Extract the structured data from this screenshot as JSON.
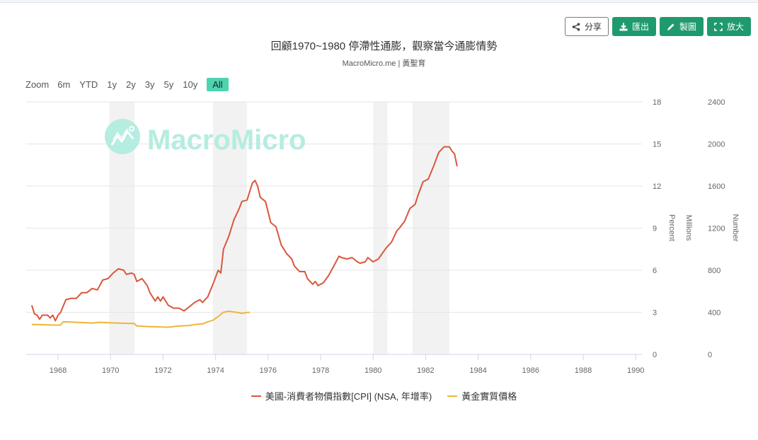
{
  "toolbar": {
    "share_label": "分享",
    "export_label": "匯出",
    "draw_label": "製圖",
    "fullscreen_label": "放大",
    "icons": {
      "share": "share-icon",
      "export": "download-icon",
      "draw": "pencil-icon",
      "fullscreen": "expand-icon"
    }
  },
  "header": {
    "title": "回顧1970~1980 停滯性通膨，觀察當今通膨情勢",
    "subtitle": "MacroMicro.me | 黃聖育"
  },
  "range_selector": {
    "label": "Zoom",
    "buttons": [
      "6m",
      "YTD",
      "1y",
      "2y",
      "3y",
      "5y",
      "10y",
      "All"
    ],
    "active": "All"
  },
  "watermark": {
    "text": "MacroMicro",
    "color": "#b5ede0"
  },
  "colors": {
    "cpi": "#d9573b",
    "gold": "#efb43a",
    "recession": "#f2f2f2",
    "grid": "#e6e6e6",
    "button": "#1f9a6e",
    "active_range": "#4cd4b0"
  },
  "chart_data": {
    "type": "line",
    "title": "回顧1970~1980 停滯性通膨，觀察當今通膨情勢",
    "subtitle": "MacroMicro.me | 黃聖育",
    "xlabel": "",
    "x_ticks": [
      "1968",
      "1970",
      "1972",
      "1974",
      "1976",
      "1978",
      "1980",
      "1982",
      "1984",
      "1986",
      "1988",
      "1990"
    ],
    "x_range": [
      1966.85,
      1990.3
    ],
    "y_axes": [
      {
        "title": "Percent",
        "ticks": [
          "0",
          "3",
          "6",
          "9",
          "12",
          "15",
          "18"
        ],
        "range": [
          0,
          18
        ]
      },
      {
        "title": "Millions",
        "ticks": [],
        "range": null
      },
      {
        "title": "Number",
        "ticks": [
          "0",
          "400",
          "800",
          "1200",
          "1600",
          "2000",
          "2400"
        ],
        "range": [
          0,
          2400
        ]
      }
    ],
    "grid": true,
    "legend_position": "bottom",
    "recession_bands": [
      [
        1969.95,
        1970.92
      ],
      [
        1973.9,
        1975.2
      ],
      [
        1980.0,
        1980.55
      ],
      [
        1981.5,
        1982.9
      ]
    ],
    "series": [
      {
        "name": "美國-消費者物價指數[CPI] (NSA, 年增率)",
        "axis": 0,
        "color": "#d9573b",
        "points": [
          [
            1967.0,
            3.5
          ],
          [
            1967.1,
            2.9
          ],
          [
            1967.2,
            2.8
          ],
          [
            1967.3,
            2.5
          ],
          [
            1967.4,
            2.8
          ],
          [
            1967.6,
            2.8
          ],
          [
            1967.7,
            2.6
          ],
          [
            1967.8,
            2.8
          ],
          [
            1967.9,
            2.4
          ],
          [
            1968.0,
            2.8
          ],
          [
            1968.1,
            3.0
          ],
          [
            1968.3,
            3.9
          ],
          [
            1968.5,
            4.0
          ],
          [
            1968.7,
            4.0
          ],
          [
            1968.9,
            4.4
          ],
          [
            1969.1,
            4.4
          ],
          [
            1969.3,
            4.7
          ],
          [
            1969.5,
            4.6
          ],
          [
            1969.7,
            5.3
          ],
          [
            1969.9,
            5.4
          ],
          [
            1970.1,
            5.8
          ],
          [
            1970.3,
            6.1
          ],
          [
            1970.5,
            6.0
          ],
          [
            1970.6,
            5.7
          ],
          [
            1970.8,
            5.8
          ],
          [
            1970.9,
            5.7
          ],
          [
            1971.0,
            5.2
          ],
          [
            1971.2,
            5.4
          ],
          [
            1971.4,
            4.9
          ],
          [
            1971.5,
            4.4
          ],
          [
            1971.7,
            3.8
          ],
          [
            1971.8,
            4.1
          ],
          [
            1971.9,
            3.8
          ],
          [
            1972.0,
            4.1
          ],
          [
            1972.2,
            3.5
          ],
          [
            1972.4,
            3.3
          ],
          [
            1972.6,
            3.3
          ],
          [
            1972.8,
            3.1
          ],
          [
            1973.0,
            3.4
          ],
          [
            1973.2,
            3.7
          ],
          [
            1973.4,
            3.9
          ],
          [
            1973.5,
            3.7
          ],
          [
            1973.7,
            4.1
          ],
          [
            1973.9,
            5.0
          ],
          [
            1974.1,
            6.0
          ],
          [
            1974.2,
            5.8
          ],
          [
            1974.3,
            7.5
          ],
          [
            1974.5,
            8.4
          ],
          [
            1974.7,
            9.6
          ],
          [
            1974.9,
            10.4
          ],
          [
            1975.0,
            10.9
          ],
          [
            1975.2,
            11.0
          ],
          [
            1975.4,
            12.2
          ],
          [
            1975.5,
            12.4
          ],
          [
            1975.6,
            12.0
          ],
          [
            1975.7,
            11.2
          ],
          [
            1975.9,
            10.9
          ],
          [
            1976.1,
            9.4
          ],
          [
            1976.3,
            9.1
          ],
          [
            1976.5,
            7.8
          ],
          [
            1976.7,
            7.2
          ],
          [
            1976.9,
            6.8
          ],
          [
            1977.0,
            6.3
          ],
          [
            1977.2,
            5.9
          ],
          [
            1977.4,
            5.9
          ],
          [
            1977.5,
            5.4
          ],
          [
            1977.7,
            5.0
          ],
          [
            1977.8,
            5.2
          ],
          [
            1977.9,
            4.9
          ],
          [
            1978.1,
            5.1
          ],
          [
            1978.3,
            5.6
          ],
          [
            1978.5,
            6.3
          ],
          [
            1978.7,
            7.0
          ],
          [
            1978.8,
            6.9
          ],
          [
            1979.0,
            6.8
          ],
          [
            1979.2,
            6.9
          ],
          [
            1979.4,
            6.6
          ],
          [
            1979.5,
            6.5
          ],
          [
            1979.7,
            6.6
          ],
          [
            1979.8,
            6.9
          ],
          [
            1980.0,
            6.6
          ],
          [
            1980.2,
            6.8
          ],
          [
            1980.5,
            7.6
          ],
          [
            1980.7,
            8.0
          ],
          [
            1980.9,
            8.8
          ],
          [
            1981.0,
            9.0
          ],
          [
            1981.2,
            9.5
          ],
          [
            1981.4,
            10.4
          ],
          [
            1981.6,
            10.7
          ],
          [
            1981.7,
            11.3
          ],
          [
            1981.9,
            12.3
          ],
          [
            1982.1,
            12.5
          ],
          [
            1982.3,
            13.4
          ],
          [
            1982.5,
            14.4
          ],
          [
            1982.7,
            14.8
          ],
          [
            1982.9,
            14.8
          ],
          [
            1983.0,
            14.5
          ],
          [
            1983.1,
            14.3
          ],
          [
            1983.2,
            13.4
          ]
        ]
      },
      {
        "name": "黃金實質價格",
        "axis": 2,
        "color": "#efb43a",
        "points": [
          [
            1967.0,
            285
          ],
          [
            1967.5,
            282
          ],
          [
            1968.0,
            278
          ],
          [
            1968.1,
            280
          ],
          [
            1968.2,
            310
          ],
          [
            1968.5,
            308
          ],
          [
            1969.0,
            302
          ],
          [
            1969.3,
            298
          ],
          [
            1969.6,
            305
          ],
          [
            1970.0,
            300
          ],
          [
            1970.5,
            296
          ],
          [
            1970.9,
            293
          ],
          [
            1971.0,
            270
          ],
          [
            1971.5,
            264
          ],
          [
            1972.0,
            260
          ],
          [
            1972.2,
            258
          ],
          [
            1972.5,
            268
          ],
          [
            1972.8,
            272
          ],
          [
            1973.0,
            275
          ],
          [
            1973.2,
            284
          ],
          [
            1973.5,
            290
          ],
          [
            1973.7,
            310
          ],
          [
            1973.9,
            325
          ],
          [
            1974.1,
            360
          ],
          [
            1974.3,
            400
          ],
          [
            1974.5,
            410
          ],
          [
            1974.8,
            400
          ],
          [
            1975.0,
            390
          ],
          [
            1975.2,
            398
          ],
          [
            1975.3,
            400
          ]
        ]
      }
    ]
  },
  "legend": {
    "items": [
      {
        "label": "美國-消費者物價指數[CPI] (NSA, 年增率)",
        "color": "#d9573b"
      },
      {
        "label": "黃金實質價格",
        "color": "#efb43a"
      }
    ]
  }
}
